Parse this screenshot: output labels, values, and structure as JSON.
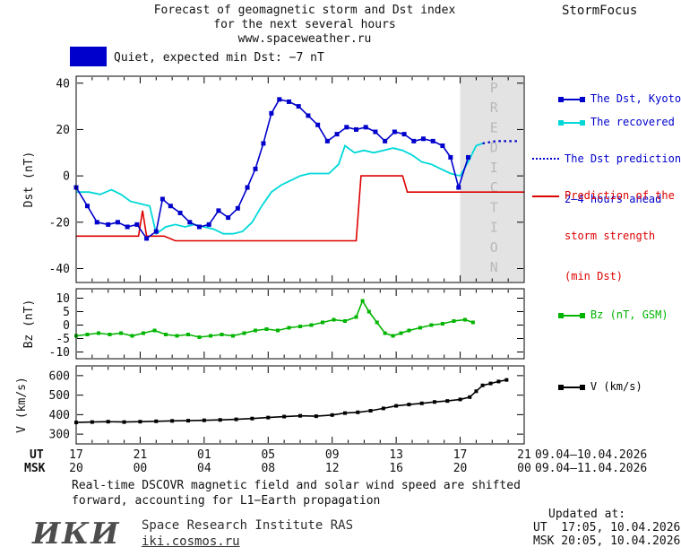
{
  "header": {
    "title_line1": "Forecast of geomagnetic storm and Dst index",
    "title_line2": "for the next several hours",
    "title_line3": "www.spaceweather.ru",
    "brand": "StormFocus"
  },
  "status": {
    "label": "Quiet, expected min Dst: −7 nT",
    "swatch_color": "#0000cc"
  },
  "legend": {
    "dst_kyoto": "The Dst, Kyoto",
    "recovered": "The recovered Dst",
    "prediction_line1": "The Dst prediction",
    "prediction_line2": "2–4 hours ahead",
    "strength_line1": "Prediction of the",
    "strength_line2": "storm strength",
    "strength_line3": "(min Dst)",
    "bz": "Bz (nT, GSM)",
    "v": "V (km/s)"
  },
  "xaxis": {
    "ut_label": "UT",
    "msk_label": "MSK",
    "ut_ticks": [
      "17",
      "21",
      "01",
      "05",
      "09",
      "13",
      "17",
      "21"
    ],
    "msk_ticks": [
      "20",
      "00",
      "04",
      "08",
      "12",
      "16",
      "20",
      "00"
    ],
    "ut_dates": "09.04–10.04.2026",
    "msk_dates": "09.04–11.04.2026"
  },
  "footer": {
    "note_line1": "Real-time DSCOVR magnetic field and solar wind speed are shifted",
    "note_line2": "forward, accounting for L1−Earth propagation",
    "logo": "ИКИ",
    "institute": "Space Research Institute RAS",
    "site": "iki.cosmos.ru",
    "updated_label": "Updated at:",
    "updated_ut": "UT  17:05, 10.04.2026",
    "updated_msk": "MSK 20:05, 10.04.2026"
  },
  "chart_data": [
    {
      "type": "line",
      "ylabel": "Dst (nT)",
      "ylim": [
        -46,
        43
      ],
      "yticks": [
        40,
        20,
        0,
        -20,
        -40
      ],
      "xlim": [
        0,
        28
      ],
      "xticks": [
        0,
        4,
        8,
        12,
        16,
        20,
        24,
        28
      ],
      "x_axis_note": "hours after 17:00 UT 09.04.2026",
      "prediction_band": {
        "x_start": 24,
        "x_end": 28,
        "label": "PREDICTION"
      },
      "series": [
        {
          "name": "The recovered Dst",
          "color": "#00d8d8",
          "width": 1.8,
          "points": [
            [
              0,
              -7
            ],
            [
              0.8,
              -7
            ],
            [
              1.5,
              -8
            ],
            [
              2.2,
              -6
            ],
            [
              2.8,
              -8
            ],
            [
              3.4,
              -11
            ],
            [
              4,
              -12
            ],
            [
              4.6,
              -13
            ],
            [
              5,
              -25
            ],
            [
              5.6,
              -22
            ],
            [
              6.2,
              -21
            ],
            [
              6.8,
              -22
            ],
            [
              7.4,
              -21
            ],
            [
              8,
              -22
            ],
            [
              8.6,
              -23
            ],
            [
              9.2,
              -25
            ],
            [
              9.8,
              -25
            ],
            [
              10.4,
              -24
            ],
            [
              11,
              -20
            ],
            [
              11.6,
              -13
            ],
            [
              12.2,
              -7
            ],
            [
              12.8,
              -4
            ],
            [
              13.4,
              -2
            ],
            [
              14,
              0
            ],
            [
              14.6,
              1
            ],
            [
              15.2,
              1
            ],
            [
              15.8,
              1
            ],
            [
              16.4,
              5
            ],
            [
              16.8,
              13
            ],
            [
              17.4,
              10
            ],
            [
              18,
              11
            ],
            [
              18.6,
              10
            ],
            [
              19.2,
              11
            ],
            [
              19.8,
              12
            ],
            [
              20.4,
              11
            ],
            [
              21,
              9
            ],
            [
              21.6,
              6
            ],
            [
              22.2,
              5
            ],
            [
              22.8,
              3
            ],
            [
              23.4,
              1
            ],
            [
              24,
              0
            ],
            [
              24.5,
              6
            ],
            [
              25,
              13
            ],
            [
              25.4,
              14
            ]
          ]
        },
        {
          "name": "Prediction of the storm strength (min Dst)",
          "color": "#dd0000",
          "width": 1.6,
          "points": [
            [
              0,
              -26
            ],
            [
              3.9,
              -26
            ],
            [
              4.15,
              -15
            ],
            [
              4.4,
              -26
            ],
            [
              5.5,
              -26
            ],
            [
              6.2,
              -28
            ],
            [
              17.5,
              -28
            ],
            [
              17.8,
              0
            ],
            [
              20.4,
              0
            ],
            [
              20.7,
              -7
            ],
            [
              28,
              -7
            ]
          ]
        },
        {
          "name": "The Dst, Kyoto",
          "color": "#0000cc",
          "width": 1.6,
          "marker": "square",
          "marker_size": 5,
          "points": [
            [
              0,
              -5
            ],
            [
              0.7,
              -13
            ],
            [
              1.3,
              -20
            ],
            [
              2,
              -21
            ],
            [
              2.6,
              -20
            ],
            [
              3.2,
              -22
            ],
            [
              3.8,
              -21
            ],
            [
              4.4,
              -27
            ],
            [
              5,
              -24
            ],
            [
              5.4,
              -10
            ],
            [
              5.9,
              -13
            ],
            [
              6.5,
              -16
            ],
            [
              7.1,
              -20
            ],
            [
              7.7,
              -22
            ],
            [
              8.3,
              -21
            ],
            [
              8.9,
              -15
            ],
            [
              9.5,
              -18
            ],
            [
              10.1,
              -14
            ],
            [
              10.7,
              -5
            ],
            [
              11.2,
              3
            ],
            [
              11.7,
              14
            ],
            [
              12.2,
              27
            ],
            [
              12.7,
              33
            ],
            [
              13.3,
              32
            ],
            [
              13.9,
              30
            ],
            [
              14.5,
              26
            ],
            [
              15.1,
              22
            ],
            [
              15.7,
              15
            ],
            [
              16.3,
              18
            ],
            [
              16.9,
              21
            ],
            [
              17.5,
              20
            ],
            [
              18.1,
              21
            ],
            [
              18.7,
              19
            ],
            [
              19.3,
              15
            ],
            [
              19.9,
              19
            ],
            [
              20.5,
              18
            ],
            [
              21.1,
              15
            ],
            [
              21.7,
              16
            ],
            [
              22.3,
              15
            ],
            [
              22.9,
              13
            ],
            [
              23.4,
              8
            ],
            [
              23.9,
              -5
            ],
            [
              24.5,
              8
            ]
          ]
        },
        {
          "name": "The Dst prediction 2–4 hours ahead",
          "color": "#0000cc",
          "style": "dotted",
          "points": [
            [
              25.4,
              14
            ],
            [
              26.2,
              15
            ],
            [
              27.6,
              15
            ]
          ]
        }
      ]
    },
    {
      "type": "line",
      "ylabel": "Bz (nT)",
      "ylim": [
        -12.5,
        13.5
      ],
      "yticks": [
        10,
        5,
        0,
        -5,
        -10
      ],
      "xlim": [
        0,
        28
      ],
      "xticks": [
        0,
        4,
        8,
        12,
        16,
        20,
        24,
        28
      ],
      "series": [
        {
          "name": "Bz (nT, GSM)",
          "color": "#00b400",
          "width": 1.6,
          "marker": "square",
          "marker_size": 4,
          "points": [
            [
              0,
              -4
            ],
            [
              0.7,
              -3.5
            ],
            [
              1.4,
              -3
            ],
            [
              2.1,
              -3.5
            ],
            [
              2.8,
              -3
            ],
            [
              3.5,
              -4
            ],
            [
              4.2,
              -3
            ],
            [
              4.9,
              -2
            ],
            [
              5.6,
              -3.5
            ],
            [
              6.3,
              -4
            ],
            [
              7,
              -3.5
            ],
            [
              7.7,
              -4.5
            ],
            [
              8.4,
              -4
            ],
            [
              9.1,
              -3.5
            ],
            [
              9.8,
              -4
            ],
            [
              10.5,
              -3
            ],
            [
              11.2,
              -2
            ],
            [
              11.9,
              -1.5
            ],
            [
              12.6,
              -2
            ],
            [
              13.3,
              -1
            ],
            [
              14,
              -0.5
            ],
            [
              14.7,
              0
            ],
            [
              15.4,
              1
            ],
            [
              16.1,
              2
            ],
            [
              16.8,
              1.5
            ],
            [
              17.5,
              3
            ],
            [
              17.9,
              9
            ],
            [
              18.3,
              5
            ],
            [
              18.8,
              1
            ],
            [
              19.3,
              -3
            ],
            [
              19.8,
              -4
            ],
            [
              20.3,
              -3
            ],
            [
              20.8,
              -2
            ],
            [
              21.5,
              -1
            ],
            [
              22.2,
              0
            ],
            [
              22.9,
              0.5
            ],
            [
              23.6,
              1.5
            ],
            [
              24.3,
              2
            ],
            [
              24.8,
              1
            ]
          ]
        }
      ]
    },
    {
      "type": "line",
      "ylabel": "V (km/s)",
      "ylim": [
        250,
        650
      ],
      "yticks": [
        600,
        500,
        400,
        300
      ],
      "xlim": [
        0,
        28
      ],
      "xticks": [
        0,
        4,
        8,
        12,
        16,
        20,
        24,
        28
      ],
      "series": [
        {
          "name": "V (km/s)",
          "color": "#000000",
          "width": 1.6,
          "marker": "square",
          "marker_size": 4,
          "points": [
            [
              0,
              360
            ],
            [
              1,
              362
            ],
            [
              2,
              364
            ],
            [
              3,
              362
            ],
            [
              4,
              364
            ],
            [
              5,
              366
            ],
            [
              6,
              368
            ],
            [
              7,
              369
            ],
            [
              8,
              371
            ],
            [
              9,
              373
            ],
            [
              10,
              376
            ],
            [
              11,
              380
            ],
            [
              12,
              385
            ],
            [
              13,
              390
            ],
            [
              14,
              394
            ],
            [
              15,
              392
            ],
            [
              16,
              398
            ],
            [
              16.8,
              408
            ],
            [
              17.6,
              412
            ],
            [
              18.4,
              420
            ],
            [
              19.2,
              432
            ],
            [
              20,
              445
            ],
            [
              20.8,
              452
            ],
            [
              21.6,
              458
            ],
            [
              22.4,
              465
            ],
            [
              23.2,
              470
            ],
            [
              24,
              478
            ],
            [
              24.6,
              490
            ],
            [
              25,
              520
            ],
            [
              25.4,
              550
            ],
            [
              25.9,
              560
            ],
            [
              26.4,
              570
            ],
            [
              26.9,
              578
            ]
          ]
        }
      ]
    }
  ]
}
